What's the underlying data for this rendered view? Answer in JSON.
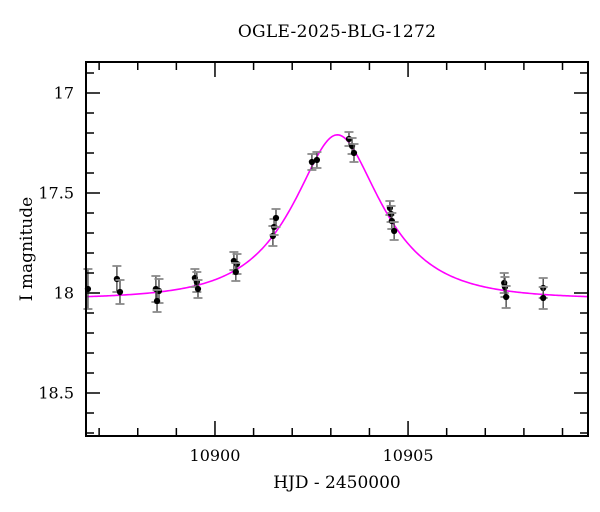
{
  "chart_data": {
    "type": "scatter",
    "title": "OGLE-2025-BLG-1272",
    "xlabel": "HJD - 2450000",
    "ylabel": "I magnitude",
    "x_axis": {
      "min": 10896.66,
      "max": 10909.66,
      "minor_step": 1,
      "major_ticks": [
        {
          "value": 10900,
          "label": "10900"
        },
        {
          "value": 10905,
          "label": "10905"
        }
      ]
    },
    "y_axis": {
      "inverted": true,
      "top_mag": 16.845,
      "bottom_mag": 18.715,
      "minor_step": 0.1,
      "major_ticks": [
        {
          "value": 17.0,
          "label": "17"
        },
        {
          "value": 17.5,
          "label": "17.5"
        },
        {
          "value": 18.0,
          "label": "18"
        },
        {
          "value": 18.5,
          "label": "18.5"
        }
      ]
    },
    "model_curve": {
      "kind": "paczynski-microlensing",
      "baseline_I0": 18.03,
      "t0": 10903.17,
      "tE": 1.93,
      "u0": 0.515,
      "peak_mag": 17.21,
      "color": "#ff00ff"
    },
    "points": [
      [
        10896.71,
        17.98,
        0.1
      ],
      [
        10897.46,
        17.93,
        0.065
      ],
      [
        10897.54,
        17.995,
        0.06
      ],
      [
        10898.47,
        17.98,
        0.065
      ],
      [
        10898.55,
        17.99,
        0.06
      ],
      [
        10898.5,
        18.04,
        0.055
      ],
      [
        10899.48,
        17.925,
        0.045
      ],
      [
        10899.53,
        17.945,
        0.05
      ],
      [
        10899.56,
        17.98,
        0.045
      ],
      [
        10900.49,
        17.84,
        0.045
      ],
      [
        10900.57,
        17.855,
        0.05
      ],
      [
        10900.54,
        17.895,
        0.045
      ],
      [
        10901.5,
        17.715,
        0.05
      ],
      [
        10901.53,
        17.67,
        0.04
      ],
      [
        10901.58,
        17.625,
        0.045
      ],
      [
        10902.51,
        17.345,
        0.04
      ],
      [
        10902.64,
        17.335,
        0.04
      ],
      [
        10903.47,
        17.23,
        0.035
      ],
      [
        10903.55,
        17.265,
        0.04
      ],
      [
        10903.6,
        17.3,
        0.045
      ],
      [
        10904.53,
        17.575,
        0.035
      ],
      [
        10904.56,
        17.605,
        0.04
      ],
      [
        10904.58,
        17.64,
        0.04
      ],
      [
        10904.64,
        17.69,
        0.045
      ],
      [
        10907.49,
        17.95,
        0.05
      ],
      [
        10907.51,
        17.97,
        0.05
      ],
      [
        10907.54,
        18.02,
        0.055
      ],
      [
        10908.5,
        17.975,
        0.05
      ],
      [
        10908.5,
        18.025,
        0.055
      ]
    ],
    "colors": {
      "background": "#ffffff",
      "frame": "#000000",
      "curve": "#ff00ff",
      "data_points": "#000000",
      "error_bars": "#4a4a4a",
      "error_caps": "#8a8a8a"
    }
  }
}
